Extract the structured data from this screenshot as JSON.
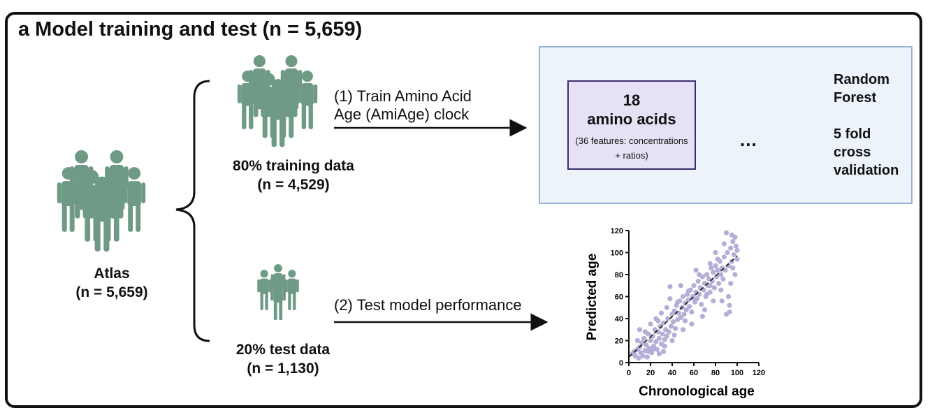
{
  "title": "a Model training and test (n = 5,659)",
  "atlas": {
    "label": "Atlas",
    "n": "(n = 5,659)"
  },
  "training": {
    "label": "80% training data",
    "n": "(n = 4,529)"
  },
  "test": {
    "label": "20% test data",
    "n": "(n = 1,130)"
  },
  "step1": {
    "line1": "(1) Train Amino Acid",
    "line2": "Age (AmiAge) clock"
  },
  "step2": "(2) Test model performance",
  "amino_box": {
    "count": "18",
    "name": "amino acids",
    "note_line1": "(36 features: concentrations",
    "note_line2": "+ ratios)"
  },
  "method": {
    "line1": "Random",
    "line2": "Forest",
    "line3": "5 fold",
    "line4": "cross",
    "line5": "validation"
  },
  "ellipsis": "...",
  "colors": {
    "people": "#6f9a86",
    "fold_highlight": "#f0b03a",
    "fold_cell": "#d9d9d9",
    "scatter": "#b3afd6",
    "panel_bg": "#edf3fb",
    "amino_bg": "#e6e1f5"
  },
  "chart_data": {
    "type": "scatter",
    "title": "",
    "xlabel": "Chronological age",
    "ylabel": "Predicted age",
    "xlim": [
      0,
      120
    ],
    "ylim": [
      0,
      120
    ],
    "xticks": [
      0,
      20,
      40,
      60,
      80,
      100,
      120
    ],
    "yticks": [
      0,
      20,
      40,
      60,
      80,
      100,
      120
    ],
    "trend_line": {
      "x": [
        0,
        100
      ],
      "y": [
        5,
        97
      ],
      "style": "dashed"
    },
    "series": [
      {
        "points": [
          [
            3,
            8
          ],
          [
            5,
            10
          ],
          [
            6,
            6
          ],
          [
            8,
            12
          ],
          [
            9,
            4
          ],
          [
            10,
            14
          ],
          [
            11,
            9
          ],
          [
            12,
            18
          ],
          [
            13,
            6
          ],
          [
            14,
            22
          ],
          [
            15,
            11
          ],
          [
            16,
            16
          ],
          [
            17,
            5
          ],
          [
            18,
            26
          ],
          [
            19,
            13
          ],
          [
            20,
            20
          ],
          [
            21,
            9
          ],
          [
            22,
            24
          ],
          [
            23,
            15
          ],
          [
            24,
            30
          ],
          [
            25,
            19
          ],
          [
            26,
            12
          ],
          [
            27,
            28
          ],
          [
            28,
            22
          ],
          [
            29,
            33
          ],
          [
            30,
            17
          ],
          [
            31,
            26
          ],
          [
            32,
            36
          ],
          [
            33,
            21
          ],
          [
            34,
            30
          ],
          [
            35,
            24
          ],
          [
            36,
            40
          ],
          [
            37,
            28
          ],
          [
            38,
            69
          ],
          [
            39,
            33
          ],
          [
            40,
            44
          ],
          [
            41,
            37
          ],
          [
            42,
            47
          ],
          [
            43,
            31
          ],
          [
            44,
            52
          ],
          [
            45,
            39
          ],
          [
            46,
            45
          ],
          [
            47,
            56
          ],
          [
            48,
            41
          ],
          [
            49,
            50
          ],
          [
            50,
            60
          ],
          [
            51,
            44
          ],
          [
            52,
            54
          ],
          [
            53,
            48
          ],
          [
            54,
            62
          ],
          [
            55,
            57
          ],
          [
            56,
            51
          ],
          [
            57,
            66
          ],
          [
            58,
            46
          ],
          [
            59,
            60
          ],
          [
            60,
            70
          ],
          [
            61,
            55
          ],
          [
            62,
            64
          ],
          [
            63,
            58
          ],
          [
            64,
            74
          ],
          [
            65,
            62
          ],
          [
            66,
            68
          ],
          [
            67,
            53
          ],
          [
            68,
            78
          ],
          [
            69,
            66
          ],
          [
            70,
            72
          ],
          [
            71,
            60
          ],
          [
            72,
            80
          ],
          [
            73,
            70
          ],
          [
            74,
            76
          ],
          [
            75,
            64
          ],
          [
            76,
            86
          ],
          [
            77,
            74
          ],
          [
            78,
            82
          ],
          [
            79,
            68
          ],
          [
            80,
            88
          ],
          [
            81,
            78
          ],
          [
            82,
            84
          ],
          [
            83,
            72
          ],
          [
            84,
            92
          ],
          [
            85,
            80
          ],
          [
            86,
            86
          ],
          [
            87,
            76
          ],
          [
            88,
            96
          ],
          [
            89,
            84
          ],
          [
            90,
            44
          ],
          [
            91,
            100
          ],
          [
            92,
            88
          ],
          [
            93,
            52
          ],
          [
            94,
            104
          ],
          [
            95,
            92
          ],
          [
            96,
            110
          ],
          [
            97,
            98
          ],
          [
            98,
            114
          ],
          [
            99,
            106
          ],
          [
            100,
            102
          ],
          [
            10,
            30
          ],
          [
            15,
            28
          ],
          [
            20,
            35
          ],
          [
            22,
            12
          ],
          [
            25,
            40
          ],
          [
            28,
            8
          ],
          [
            30,
            45
          ],
          [
            33,
            15
          ],
          [
            35,
            50
          ],
          [
            40,
            20
          ],
          [
            45,
            55
          ],
          [
            50,
            30
          ],
          [
            55,
            65
          ],
          [
            58,
            35
          ],
          [
            60,
            58
          ],
          [
            65,
            80
          ],
          [
            70,
            48
          ],
          [
            72,
            62
          ],
          [
            75,
            90
          ],
          [
            78,
            56
          ],
          [
            80,
            100
          ],
          [
            85,
            66
          ],
          [
            88,
            108
          ],
          [
            90,
            118
          ],
          [
            92,
            60
          ],
          [
            95,
            116
          ],
          [
            98,
            80
          ],
          [
            100,
            94
          ],
          [
            8,
            20
          ],
          [
            18,
            10
          ],
          [
            27,
            38
          ],
          [
            32,
            10
          ],
          [
            38,
            58
          ],
          [
            42,
            25
          ],
          [
            48,
            70
          ],
          [
            52,
            38
          ],
          [
            62,
            84
          ],
          [
            68,
            42
          ],
          [
            75,
            70
          ],
          [
            82,
            94
          ],
          [
            86,
            56
          ],
          [
            94,
            72
          ],
          [
            96,
            86
          ],
          [
            93,
            46
          ]
        ]
      }
    ]
  }
}
